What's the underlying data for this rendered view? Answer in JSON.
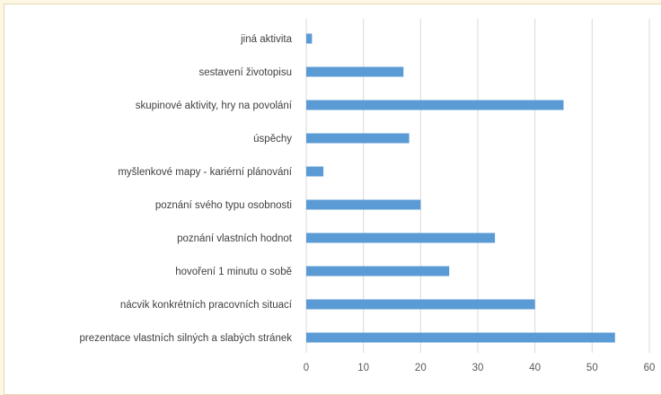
{
  "chart_data": {
    "type": "bar",
    "orientation": "horizontal",
    "categories": [
      "jiná  aktivita",
      "sestavení životopisu",
      "skupinové aktivity, hry na povolání",
      "úspěchy",
      "myšlenkové mapy - kariérní plánování",
      "poznání svého typu osobnosti",
      "poznání vlastních hodnot",
      "hovoření 1 minutu o sobě",
      "nácvik konkrétních pracovních situací",
      "prezentace vlastních silných a slabých stránek"
    ],
    "values": [
      1,
      17,
      45,
      18,
      3,
      20,
      33,
      25,
      40,
      54
    ],
    "xlim": [
      0,
      60
    ],
    "xticks": [
      "0",
      "10",
      "20",
      "30",
      "40",
      "50",
      "60"
    ],
    "grid": true,
    "bar_color": "#5b9bd5",
    "title": "",
    "xlabel": "",
    "ylabel": ""
  }
}
